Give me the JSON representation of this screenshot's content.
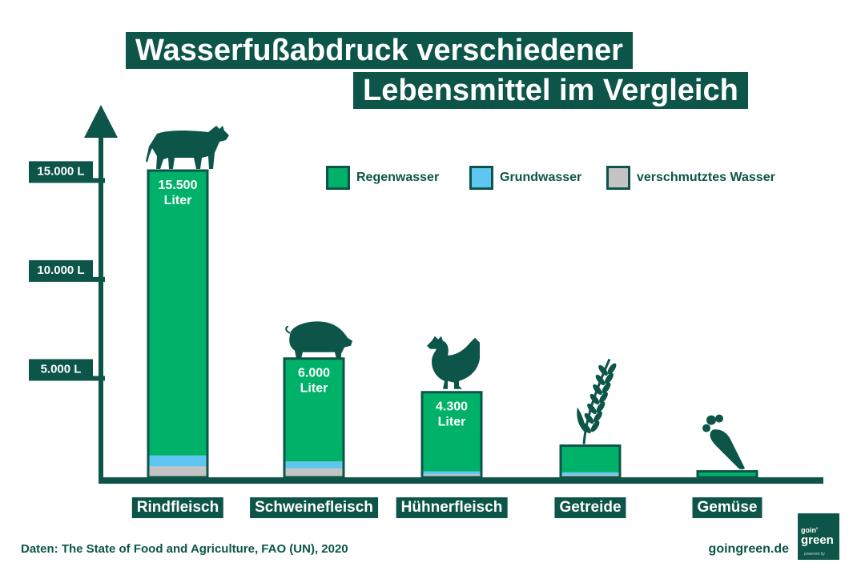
{
  "title": {
    "line1": "Wasserfußabdruck verschiedener",
    "line2": "Lebensmittel im Vergleich"
  },
  "legend": [
    {
      "label": "Regenwasser",
      "color": "#00b16a"
    },
    {
      "label": "Grundwasser",
      "color": "#5ec6f0"
    },
    {
      "label": "verschmutztes Wasser",
      "color": "#c4c4c4"
    }
  ],
  "source": "Daten: The State of Food and Agriculture, FAO (UN), 2020",
  "website": "goingreen.de",
  "logo": {
    "line1": "goin'",
    "line2": "green",
    "tagline": "powered by"
  },
  "chart_data": {
    "type": "bar",
    "stacked": true,
    "categories": [
      "Rindfleisch",
      "Schweinefleisch",
      "Hühnerfleisch",
      "Getreide",
      "Gemüse"
    ],
    "icons": [
      "cow-icon",
      "pig-icon",
      "chicken-icon",
      "wheat-icon",
      "carrot-icon"
    ],
    "totals": [
      15500,
      6000,
      4300,
      1600,
      300
    ],
    "value_labels": [
      [
        "15.500",
        "Liter"
      ],
      [
        "6.000",
        "Liter"
      ],
      [
        "4.300",
        "Liter"
      ],
      [
        "",
        ""
      ],
      [
        "",
        ""
      ]
    ],
    "series": [
      {
        "name": "Regenwasser",
        "color": "#00b16a",
        "values": [
          14400,
          5200,
          4000,
          1350,
          250
        ]
      },
      {
        "name": "Grundwasser",
        "color": "#5ec6f0",
        "values": [
          550,
          350,
          150,
          120,
          25
        ]
      },
      {
        "name": "verschmutztes Wasser",
        "color": "#c4c4c4",
        "values": [
          550,
          450,
          150,
          130,
          25
        ]
      }
    ],
    "yticks": [
      5000,
      10000,
      15000
    ],
    "ytick_labels": [
      "5.000 L",
      "10.000 L",
      "15.000 L"
    ],
    "ylim": [
      0,
      16500
    ],
    "axis_color": "#0c5548",
    "bar_outline_color": "#0c5548"
  }
}
